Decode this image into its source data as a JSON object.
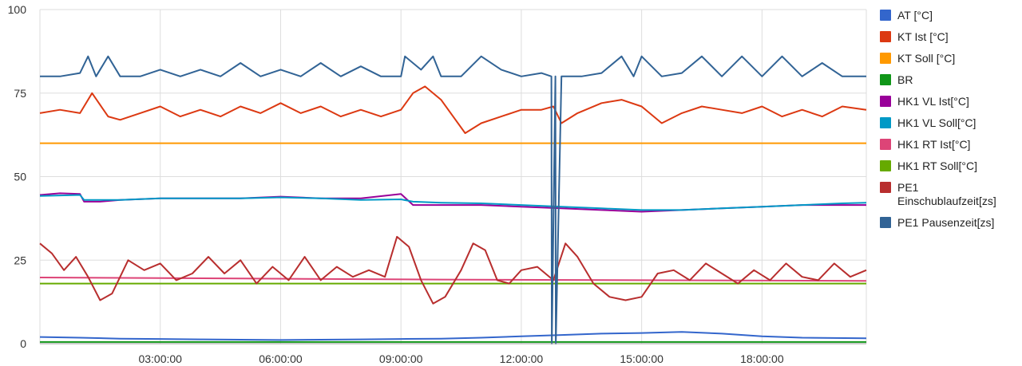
{
  "chart_data": {
    "type": "line",
    "title": "",
    "xlabel": "",
    "ylabel": "",
    "ylim": [
      0,
      100
    ],
    "xlim_hours": [
      0,
      20.6
    ],
    "y_ticks": [
      "0",
      "25",
      "50",
      "75",
      "100"
    ],
    "x_ticks": [
      {
        "h": 3,
        "label": "03:00:00"
      },
      {
        "h": 6,
        "label": "06:00:00"
      },
      {
        "h": 9,
        "label": "09:00:00"
      },
      {
        "h": 12,
        "label": "12:00:00"
      },
      {
        "h": 15,
        "label": "15:00:00"
      },
      {
        "h": 18,
        "label": "18:00:00"
      }
    ],
    "grid": true,
    "legend_position": "right",
    "series": [
      {
        "name": "AT [°C]",
        "color": "#3366cc",
        "x": [
          0,
          1,
          2,
          3,
          4,
          5,
          6,
          7,
          8,
          9,
          10,
          11,
          12,
          13,
          14,
          15,
          16,
          17,
          18,
          19,
          20.6
        ],
        "y": [
          2,
          1.8,
          1.5,
          1.4,
          1.3,
          1.2,
          1.1,
          1.2,
          1.3,
          1.4,
          1.5,
          1.8,
          2.2,
          2.6,
          3.0,
          3.2,
          3.5,
          3.0,
          2.2,
          1.8,
          1.6
        ]
      },
      {
        "name": "KT Ist [°C]",
        "color": "#dc3912",
        "x": [
          0,
          0.5,
          1,
          1.3,
          1.7,
          2,
          2.5,
          3,
          3.5,
          4,
          4.5,
          5,
          5.5,
          6,
          6.5,
          7,
          7.5,
          8,
          8.5,
          9,
          9.3,
          9.6,
          10,
          10.3,
          10.6,
          11,
          11.5,
          12,
          12.5,
          12.8,
          13,
          13.4,
          14,
          14.5,
          15,
          15.5,
          16,
          16.5,
          17,
          17.5,
          18,
          18.5,
          19,
          19.5,
          20,
          20.6
        ],
        "y": [
          69,
          70,
          69,
          75,
          68,
          67,
          69,
          71,
          68,
          70,
          68,
          71,
          69,
          72,
          69,
          71,
          68,
          70,
          68,
          70,
          75,
          77,
          73,
          68,
          63,
          66,
          68,
          70,
          70,
          71,
          66,
          69,
          72,
          73,
          71,
          66,
          69,
          71,
          70,
          69,
          71,
          68,
          70,
          68,
          71,
          70
        ]
      },
      {
        "name": "KT Soll [°C]",
        "color": "#ff9900",
        "x": [
          0,
          20.6
        ],
        "y": [
          60,
          60
        ]
      },
      {
        "name": "BR",
        "color": "#109618",
        "x": [
          0,
          20.6
        ],
        "y": [
          0.5,
          0.5
        ]
      },
      {
        "name": "HK1 VL Ist[°C]",
        "color": "#990099",
        "x": [
          0,
          0.5,
          1,
          1.1,
          1.5,
          2,
          3,
          4,
          5,
          6,
          7,
          8,
          9,
          9.3,
          10,
          11,
          12,
          13,
          14,
          15,
          16,
          17,
          18,
          19,
          20,
          20.6
        ],
        "y": [
          44.5,
          45,
          44.8,
          42.5,
          42.5,
          43,
          43.5,
          43.5,
          43.5,
          44,
          43.5,
          43.5,
          44.8,
          41.5,
          41.5,
          41.5,
          41,
          40.5,
          40,
          39.5,
          40,
          40.5,
          41,
          41.5,
          41.5,
          41.5
        ]
      },
      {
        "name": "HK1 VL Soll[°C]",
        "color": "#0099c6",
        "x": [
          0,
          1,
          1.1,
          2,
          3,
          4,
          5,
          6,
          7,
          8,
          9,
          9.3,
          10,
          11,
          12,
          13,
          14,
          15,
          16,
          17,
          18,
          19,
          20,
          20.6
        ],
        "y": [
          44.2,
          44.5,
          43,
          43,
          43.5,
          43.5,
          43.5,
          43.8,
          43.5,
          43,
          43.2,
          42.5,
          42.2,
          42,
          41.5,
          41,
          40.5,
          40,
          40,
          40.5,
          41,
          41.5,
          42,
          42.2
        ]
      },
      {
        "name": "HK1 RT Ist[°C]",
        "color": "#dd4477",
        "x": [
          0,
          5,
          10,
          15,
          20.6
        ],
        "y": [
          19.8,
          19.5,
          19.2,
          19,
          18.8
        ]
      },
      {
        "name": "HK1 RT Soll[°C]",
        "color": "#66aa00",
        "x": [
          0,
          20.6
        ],
        "y": [
          18,
          18
        ]
      },
      {
        "name": "PE1 Einschublaufzeit[zs]",
        "color": "#b82e2e",
        "x": [
          0,
          0.3,
          0.6,
          0.9,
          1.2,
          1.5,
          1.8,
          2.2,
          2.6,
          3,
          3.4,
          3.8,
          4.2,
          4.6,
          5,
          5.4,
          5.8,
          6.2,
          6.6,
          7,
          7.4,
          7.8,
          8.2,
          8.6,
          8.9,
          9.2,
          9.5,
          9.8,
          10.1,
          10.5,
          10.8,
          11.1,
          11.4,
          11.7,
          12,
          12.4,
          12.8,
          13.1,
          13.4,
          13.8,
          14.2,
          14.6,
          15,
          15.4,
          15.8,
          16.2,
          16.6,
          17,
          17.4,
          17.8,
          18.2,
          18.6,
          19,
          19.4,
          19.8,
          20.2,
          20.6
        ],
        "y": [
          30,
          27,
          22,
          26,
          20,
          13,
          15,
          25,
          22,
          24,
          19,
          21,
          26,
          21,
          25,
          18,
          23,
          19,
          26,
          19,
          23,
          20,
          22,
          20,
          32,
          29,
          19,
          12,
          14,
          22,
          30,
          28,
          19,
          18,
          22,
          23,
          19,
          30,
          26,
          18,
          14,
          13,
          14,
          21,
          22,
          19,
          24,
          21,
          18,
          22,
          19,
          24,
          20,
          19,
          24,
          20,
          22
        ]
      },
      {
        "name": "PE1 Pausenzeit[zs]",
        "color": "#316395",
        "x": [
          0,
          0.5,
          1,
          1.2,
          1.4,
          1.7,
          2,
          2.5,
          3,
          3.5,
          4,
          4.5,
          5,
          5.5,
          6,
          6.5,
          7,
          7.5,
          8,
          8.5,
          9,
          9.1,
          9.5,
          9.8,
          10,
          10.3,
          10.5,
          11,
          11.5,
          12,
          12.5,
          12.75,
          12.76,
          12.85,
          12.86,
          13,
          13.5,
          14,
          14.5,
          14.8,
          15,
          15.5,
          16,
          16.5,
          17,
          17.5,
          18,
          18.5,
          19,
          19.5,
          20,
          20.6
        ],
        "y": [
          80,
          80,
          81,
          86,
          80,
          86,
          80,
          80,
          82,
          80,
          82,
          80,
          84,
          80,
          82,
          80,
          84,
          80,
          83,
          80,
          80,
          86,
          82,
          86,
          80,
          80,
          80,
          86,
          82,
          80,
          81,
          80,
          0,
          80,
          0,
          80,
          80,
          81,
          86,
          80,
          86,
          80,
          81,
          86,
          80,
          86,
          80,
          86,
          80,
          84,
          80,
          80
        ]
      }
    ]
  }
}
